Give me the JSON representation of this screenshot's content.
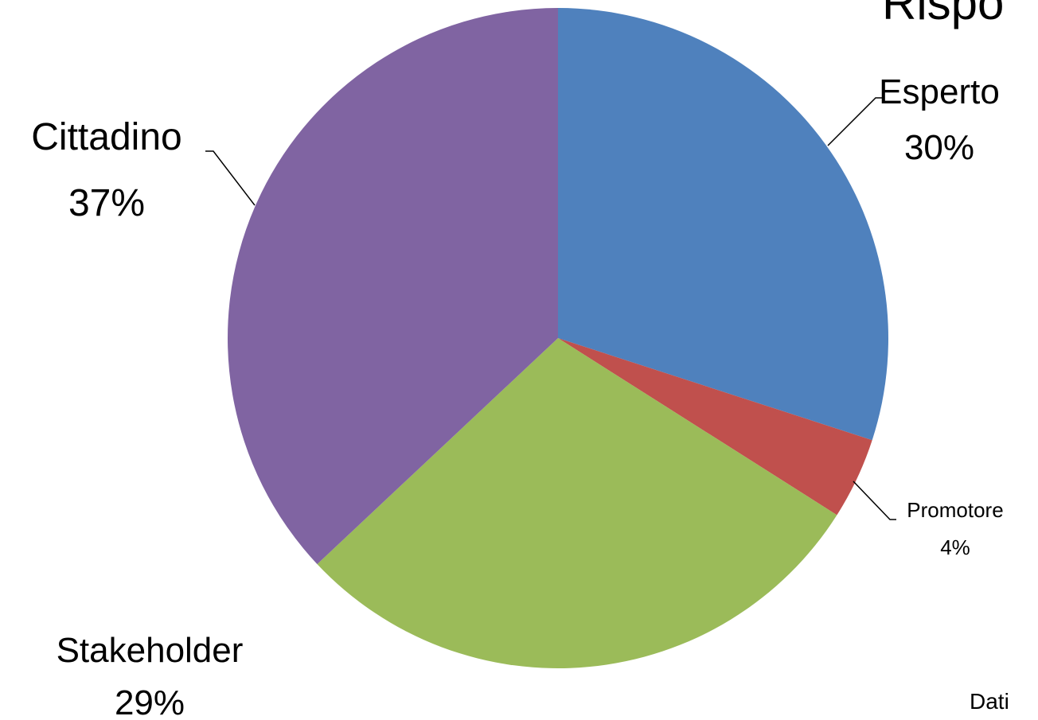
{
  "title_partial": "Rispo",
  "footer_partial": "Dati",
  "chart_data": {
    "type": "pie",
    "start_angle": "12 o'clock",
    "direction": "clockwise",
    "slices": [
      {
        "name": "Esperto",
        "value": 30,
        "label": "30%",
        "color": "#4F81BD"
      },
      {
        "name": "Promotore",
        "value": 4,
        "label": "4%",
        "color": "#C0504D"
      },
      {
        "name": "Stakeholder",
        "value": 29,
        "label": "29%",
        "color": "#9BBB59"
      },
      {
        "name": "Cittadino",
        "value": 37,
        "label": "37%",
        "color": "#8064A2"
      }
    ]
  }
}
